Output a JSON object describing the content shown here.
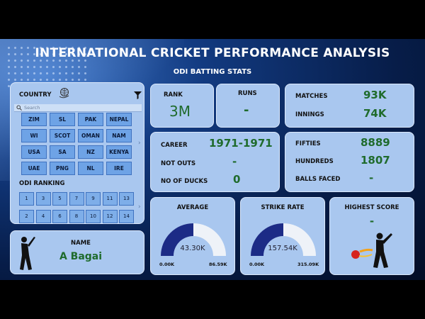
{
  "header": {
    "title": "INTERNATIONAL CRICKET PERFORMANCE ANALYSIS",
    "subtitle": "ODI BATTING STATS"
  },
  "country_slicer": {
    "label": "COUNTRY",
    "search_placeholder": "Search",
    "countries": [
      "ZIM",
      "SL",
      "PAK",
      "NEPAL",
      "WI",
      "SCOT",
      "OMAN",
      "NAM",
      "USA",
      "SA",
      "NZ",
      "KENYA",
      "UAE",
      "PNG",
      "NL",
      "IRE"
    ]
  },
  "ranking_slicer": {
    "label": "ODI RANKING",
    "ranks": [
      "1",
      "3",
      "5",
      "7",
      "9",
      "11",
      "13",
      "2",
      "4",
      "6",
      "8",
      "10",
      "12",
      "14"
    ]
  },
  "player": {
    "label": "NAME",
    "value": "A Bagai"
  },
  "rank": {
    "label": "RANK",
    "value": "3M"
  },
  "runs": {
    "label": "RUNS",
    "value": "-"
  },
  "matches": {
    "label": "MATCHES",
    "value": "93K"
  },
  "innings": {
    "label": "INNINGS",
    "value": "74K"
  },
  "career": {
    "label": "CAREER",
    "value": "1971-1971"
  },
  "not_outs": {
    "label": "NOT OUTS",
    "value": "-"
  },
  "ducks": {
    "label": "NO OF DUCKS",
    "value": "0"
  },
  "fifties": {
    "label": "FIFTIES",
    "value": "8889"
  },
  "hundreds": {
    "label": "HUNDREDS",
    "value": "1807"
  },
  "balls_faced": {
    "label": "BALLS FACED",
    "value": "-"
  },
  "average": {
    "label": "AVERAGE",
    "value": "43.30K",
    "min": "0.00K",
    "max": "86.59K",
    "fraction": 0.5
  },
  "strike_rate": {
    "label": "STRIKE RATE",
    "value": "157.54K",
    "min": "0.00K",
    "max": "315.09K",
    "fraction": 0.5
  },
  "highest_score": {
    "label": "HIGHEST SCORE",
    "value": "-"
  },
  "colors": {
    "gauge_fill": "#1c2b86",
    "gauge_track": "#eef2f8",
    "value_green": "#1f6b2c",
    "panel": "#a9c7ef"
  },
  "icons": [
    "funnel-icon",
    "search-icon",
    "globe-hand-icon",
    "batsman-silhouette-icon",
    "batsman-ball-icon",
    "chevron-right-icon"
  ]
}
